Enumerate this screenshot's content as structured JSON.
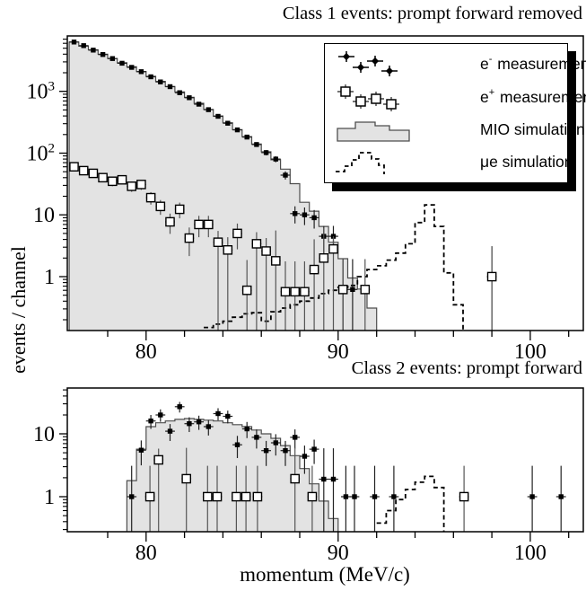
{
  "figure": {
    "colors": {
      "hist_fill": "#e3e3e3",
      "hist_stroke": "#4d4d4d",
      "ink": "#000000"
    }
  },
  "legend": {
    "items": [
      {
        "icon": "eminus",
        "pre": "e",
        "sup": "-",
        "label": "measurement"
      },
      {
        "icon": "eplus",
        "pre": "e",
        "sup": "+",
        "label": "measurement"
      },
      {
        "icon": "mio",
        "pre": "",
        "sup": "",
        "label": "MIO simulation"
      },
      {
        "icon": "mue",
        "pre": "",
        "sup": "",
        "label": "μe simulation"
      }
    ]
  },
  "chart_data": [
    {
      "id": "class1",
      "type": "bar",
      "title": "Class 1 events: prompt forward removed",
      "xlabel": "momentum (MeV/c)",
      "ylabel": "events / channel",
      "x_range": [
        75.9,
        102.76
      ],
      "y_range": [
        0.134,
        7900
      ],
      "y_scale": "log",
      "x_ticks_major": [
        80,
        90,
        100
      ],
      "x_tick_minor_step": 2,
      "y_decade_labels": [
        0,
        1,
        2,
        3
      ],
      "grid": false,
      "legend_position": "inside-top-right",
      "series": [
        {
          "name": "e- measurement",
          "type": "scatter-filled",
          "points": [
            [
              76.25,
              6300
            ],
            [
              76.75,
              5500
            ],
            [
              77.25,
              4650
            ],
            [
              77.75,
              3950
            ],
            [
              78.25,
              3400
            ],
            [
              78.75,
              2850
            ],
            [
              79.25,
              2450
            ],
            [
              79.75,
              2080
            ],
            [
              80.25,
              1720
            ],
            [
              80.75,
              1420
            ],
            [
              81.25,
              1190
            ],
            [
              81.75,
              950
            ],
            [
              82.25,
              790
            ],
            [
              82.75,
              620
            ],
            [
              83.25,
              505
            ],
            [
              83.75,
              395
            ],
            [
              84.25,
              305
            ],
            [
              84.75,
              238
            ],
            [
              85.25,
              182
            ],
            [
              85.75,
              138
            ],
            [
              86.25,
              102
            ],
            [
              86.75,
              80
            ],
            [
              87.25,
              44
            ],
            [
              87.75,
              10.5
            ],
            [
              88.25,
              10
            ],
            [
              88.75,
              9
            ],
            [
              89.25,
              4.5
            ],
            [
              89.75,
              4.5
            ],
            [
              90.25,
              0.62
            ],
            [
              90.75,
              0.62
            ],
            [
              98,
              1
            ]
          ]
        },
        {
          "name": "e+ measurement",
          "type": "scatter-open",
          "points": [
            [
              76.25,
              60
            ],
            [
              76.75,
              52
            ],
            [
              77.25,
              47
            ],
            [
              77.75,
              40
            ],
            [
              78.25,
              35
            ],
            [
              78.75,
              37
            ],
            [
              79.25,
              29
            ],
            [
              79.75,
              31
            ],
            [
              80.25,
              19
            ],
            [
              80.75,
              13.7
            ],
            [
              81.25,
              7.7
            ],
            [
              81.75,
              12.3
            ],
            [
              82.25,
              4.2
            ],
            [
              82.75,
              7.0
            ],
            [
              83.25,
              7.0
            ],
            [
              83.75,
              3.6
            ],
            [
              84.25,
              2.7
            ],
            [
              84.75,
              5.0
            ],
            [
              85.25,
              0.6
            ],
            [
              85.75,
              3.4
            ],
            [
              86.25,
              2.6
            ],
            [
              86.75,
              1.8
            ],
            [
              87.25,
              0.57
            ],
            [
              87.75,
              0.57
            ],
            [
              88.25,
              0.57
            ],
            [
              88.75,
              1.3
            ],
            [
              89.25,
              2.0
            ],
            [
              89.75,
              2.8
            ],
            [
              90.25,
              0.62
            ],
            [
              91.4,
              0.62
            ],
            [
              98,
              1
            ]
          ]
        },
        {
          "name": "MIO simulation",
          "type": "hist-filled",
          "bin_width": 0.5,
          "bins": [
            [
              76.25,
              6300
            ],
            [
              76.75,
              5400
            ],
            [
              77.25,
              4700
            ],
            [
              77.75,
              4000
            ],
            [
              78.25,
              3400
            ],
            [
              78.75,
              2900
            ],
            [
              79.25,
              2500
            ],
            [
              79.75,
              2100
            ],
            [
              80.25,
              1750
            ],
            [
              80.75,
              1450
            ],
            [
              81.25,
              1200
            ],
            [
              81.75,
              980
            ],
            [
              82.25,
              800
            ],
            [
              82.75,
              640
            ],
            [
              83.25,
              510
            ],
            [
              83.75,
              400
            ],
            [
              84.25,
              310
            ],
            [
              84.75,
              240
            ],
            [
              85.25,
              185
            ],
            [
              85.75,
              140
            ],
            [
              86.25,
              105
            ],
            [
              86.75,
              78
            ],
            [
              87.25,
              55
            ],
            [
              87.75,
              32
            ],
            [
              88.25,
              16
            ],
            [
              88.75,
              11.5
            ],
            [
              89.25,
              6.5
            ],
            [
              89.75,
              3.6
            ],
            [
              90.25,
              1.95
            ],
            [
              90.75,
              0.95
            ],
            [
              91.25,
              0.63
            ],
            [
              91.75,
              0.31
            ]
          ]
        },
        {
          "name": "μe simulation",
          "type": "hist-dashed",
          "bin_width": 0.5,
          "bins": [
            [
              83.25,
              0.15
            ],
            [
              83.75,
              0.17
            ],
            [
              84.25,
              0.19
            ],
            [
              84.75,
              0.22
            ],
            [
              85.25,
              0.25
            ],
            [
              85.75,
              0.26
            ],
            [
              86.25,
              0.19
            ],
            [
              86.75,
              0.27
            ],
            [
              87.25,
              0.31
            ],
            [
              87.75,
              0.35
            ],
            [
              88.25,
              0.4
            ],
            [
              88.75,
              0.45
            ],
            [
              89.25,
              0.53
            ],
            [
              89.75,
              0.6
            ],
            [
              90.25,
              0.67
            ],
            [
              90.75,
              0.72
            ],
            [
              91.25,
              1.0
            ],
            [
              91.75,
              1.3
            ],
            [
              92.25,
              1.5
            ],
            [
              92.75,
              1.85
            ],
            [
              93.25,
              2.4
            ],
            [
              93.75,
              3.4
            ],
            [
              94.25,
              7.5
            ],
            [
              94.75,
              14.5
            ],
            [
              95.25,
              6.5
            ],
            [
              95.75,
              1.15
            ],
            [
              96.25,
              0.35
            ]
          ]
        }
      ]
    },
    {
      "id": "class2",
      "type": "bar",
      "title": "Class 2 events: prompt forward",
      "xlabel": "momentum (MeV/c)",
      "ylabel": "events / channel",
      "x_range": [
        75.9,
        102.76
      ],
      "y_range": [
        0.277,
        53.6
      ],
      "y_scale": "log",
      "x_ticks_major": [
        80,
        90,
        100
      ],
      "x_tick_minor_step": 2,
      "y_decade_labels": [
        0,
        1
      ],
      "grid": false,
      "series": [
        {
          "name": "e- measurement",
          "type": "scatter-filled",
          "points": [
            [
              79.25,
              1
            ],
            [
              79.75,
              5.5
            ],
            [
              80.25,
              16
            ],
            [
              80.75,
              20
            ],
            [
              81.25,
              11
            ],
            [
              81.75,
              27
            ],
            [
              82.25,
              14.5
            ],
            [
              82.75,
              15.5
            ],
            [
              83.25,
              13
            ],
            [
              83.75,
              21
            ],
            [
              84.25,
              19
            ],
            [
              84.75,
              6.7
            ],
            [
              85.25,
              12
            ],
            [
              85.75,
              8.8
            ],
            [
              86.25,
              5.4
            ],
            [
              86.75,
              7.2
            ],
            [
              87.25,
              5.4
            ],
            [
              87.75,
              8.8
            ],
            [
              88.25,
              4.4
            ],
            [
              88.75,
              5.7
            ],
            [
              89.25,
              1.9
            ],
            [
              89.75,
              1.9
            ],
            [
              90.4,
              1
            ],
            [
              90.85,
              1
            ],
            [
              91.9,
              1
            ],
            [
              92.9,
              1
            ],
            [
              100.1,
              1
            ],
            [
              101.6,
              1
            ]
          ]
        },
        {
          "name": "e+ measurement",
          "type": "scatter-open",
          "points": [
            [
              80.2,
              1
            ],
            [
              80.65,
              3.85
            ],
            [
              82.1,
              1.93
            ],
            [
              83.2,
              1
            ],
            [
              83.7,
              1
            ],
            [
              84.7,
              1
            ],
            [
              85.2,
              1
            ],
            [
              85.8,
              1
            ],
            [
              87.75,
              1.93
            ],
            [
              88.65,
              1
            ],
            [
              96.55,
              1
            ]
          ]
        },
        {
          "name": "MIO simulation",
          "type": "hist-filled",
          "bin_width": 0.5,
          "bins": [
            [
              79.25,
              1.8
            ],
            [
              79.75,
              5.7
            ],
            [
              80.25,
              13
            ],
            [
              80.75,
              15
            ],
            [
              81.25,
              16
            ],
            [
              81.75,
              17
            ],
            [
              82.25,
              17.5
            ],
            [
              82.75,
              17
            ],
            [
              83.25,
              16.5
            ],
            [
              83.75,
              16
            ],
            [
              84.25,
              15
            ],
            [
              84.75,
              14
            ],
            [
              85.25,
              13
            ],
            [
              85.75,
              11.5
            ],
            [
              86.25,
              10
            ],
            [
              86.75,
              8.5
            ],
            [
              87.25,
              6.5
            ],
            [
              87.75,
              4.5
            ],
            [
              88.25,
              2.8
            ],
            [
              88.75,
              1.6
            ],
            [
              89.25,
              0.85
            ],
            [
              89.75,
              0.45
            ]
          ]
        },
        {
          "name": "μe simulation",
          "type": "hist-dashed",
          "bin_width": 0.5,
          "bins": [
            [
              92.25,
              0.38
            ],
            [
              92.75,
              0.6
            ],
            [
              93.25,
              0.9
            ],
            [
              93.75,
              1.3
            ],
            [
              94.25,
              1.7
            ],
            [
              94.75,
              2.1
            ],
            [
              95.25,
              1.4
            ]
          ]
        }
      ]
    }
  ]
}
